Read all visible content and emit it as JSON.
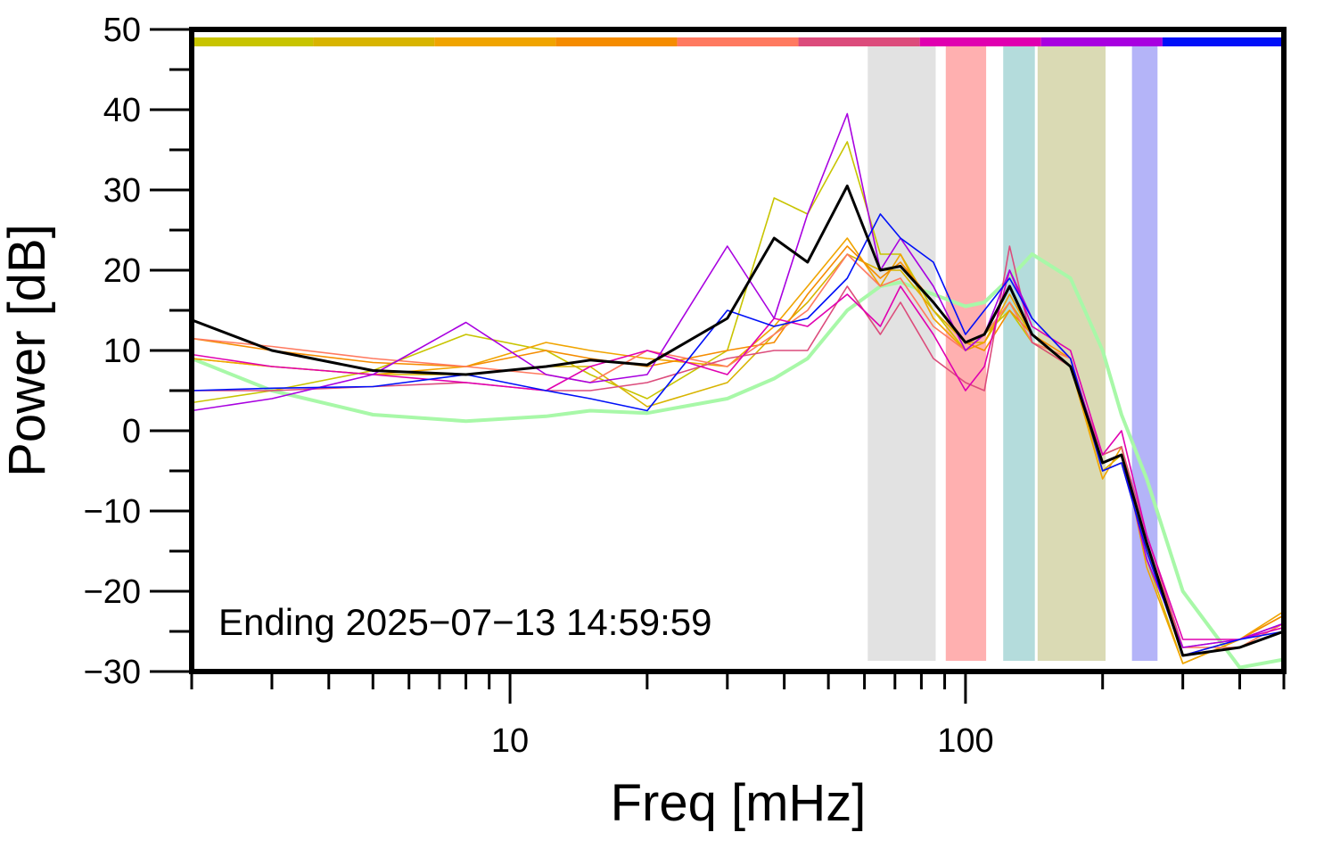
{
  "chart_data": {
    "type": "line",
    "xlabel": "Freq [mHz]",
    "ylabel": "Power [dB]",
    "annotation": "Ending 2025−07−13 14:59:59",
    "xscale": "log",
    "xlim": [
      2,
      500
    ],
    "ylim": [
      -30,
      50
    ],
    "xticks": [
      10,
      100
    ],
    "xminorticks": [
      2,
      3,
      4,
      5,
      6,
      7,
      8,
      9,
      20,
      30,
      40,
      50,
      60,
      70,
      80,
      90,
      200,
      300,
      400,
      500
    ],
    "yticks": [
      {
        "value": -30,
        "label": "−30"
      },
      {
        "value": -20,
        "label": "−20"
      },
      {
        "value": -10,
        "label": "−10"
      },
      0,
      10,
      20,
      30,
      40,
      50
    ],
    "yminorticks": [
      -25,
      -15,
      -5,
      5,
      15,
      25,
      35,
      45
    ],
    "color_bar": [
      "#c8c400",
      "#d8b400",
      "#f0a400",
      "#f58c00",
      "#ff7a60",
      "#dc4c7c",
      "#e000b0",
      "#a800e0",
      "#0010f8"
    ],
    "bands": [
      {
        "xmin": 61,
        "xmax": 86,
        "color": "#e2e2e2"
      },
      {
        "xmin": 90.5,
        "xmax": 111,
        "color": "#ffb0b0"
      },
      {
        "xmin": 121,
        "xmax": 142,
        "color": "#b4dcdc"
      },
      {
        "xmin": 144,
        "xmax": 203,
        "color": "#dadab4"
      },
      {
        "xmin": 232,
        "xmax": 264,
        "color": "#b4b4f8"
      }
    ],
    "x": [
      2,
      3,
      5,
      8,
      12,
      15,
      20,
      30,
      38,
      45,
      55,
      65,
      72,
      85,
      100,
      110,
      125,
      140,
      170,
      200,
      220,
      250,
      300,
      400,
      500
    ],
    "series": [
      {
        "color": "#a8f8a8",
        "width": 4,
        "values": [
          9,
          5,
          2,
          1.2,
          1.8,
          2.5,
          2.2,
          4,
          6.5,
          9,
          15,
          18,
          18.5,
          17,
          15.5,
          16,
          19,
          22,
          19,
          10,
          2,
          -6,
          -20,
          -29.5,
          -28.5
        ]
      },
      {
        "color": "#c8c400",
        "width": 1.6,
        "values": [
          3.5,
          5,
          7.5,
          12,
          10,
          7,
          4,
          10,
          29,
          27,
          36,
          22,
          22,
          15,
          10,
          12,
          15,
          11,
          8,
          -3,
          -2,
          -15,
          -28,
          -27,
          -24
        ]
      },
      {
        "color": "#d8b400",
        "width": 1.6,
        "values": [
          9,
          8,
          7,
          7,
          8,
          8,
          3,
          6,
          12,
          16,
          22,
          20,
          20,
          15,
          11,
          11,
          16,
          12,
          8,
          -5,
          -3,
          -16,
          -29,
          -26,
          -23
        ]
      },
      {
        "color": "#f0a400",
        "width": 1.6,
        "values": [
          9,
          8,
          7,
          8,
          11,
          10,
          9,
          8,
          13,
          18,
          24,
          18,
          22,
          14,
          10,
          11,
          17,
          12,
          8,
          -6,
          -2,
          -17,
          -29,
          -26,
          -22.5
        ]
      },
      {
        "color": "#f58c00",
        "width": 1.6,
        "values": [
          11.5,
          10,
          8.5,
          8,
          10,
          9,
          8,
          10,
          11,
          17,
          23,
          19,
          21,
          16,
          11,
          10,
          15,
          12,
          9,
          -5,
          -4,
          -15,
          -28,
          -26,
          -23
        ]
      },
      {
        "color": "#ff7a60",
        "width": 1.6,
        "values": [
          11.5,
          10.5,
          9,
          8,
          7,
          6,
          10,
          8,
          12,
          15,
          22,
          18,
          19,
          13,
          10,
          12,
          16,
          11,
          9,
          -4,
          -3,
          -14,
          -27,
          -27,
          -24
        ]
      },
      {
        "color": "#dc4c7c",
        "width": 1.6,
        "values": [
          5,
          5,
          5.5,
          6,
          5,
          5,
          6,
          9,
          10,
          10,
          18,
          12,
          16,
          9,
          6,
          5,
          23,
          11,
          8,
          -3,
          -2,
          -13,
          -27,
          -26,
          -24
        ]
      },
      {
        "color": "#e000b0",
        "width": 1.6,
        "values": [
          9.5,
          8,
          7,
          6,
          5,
          8,
          10,
          7,
          14,
          13,
          17,
          13,
          18,
          12,
          5,
          8,
          20,
          13,
          10,
          -3,
          0,
          -13,
          -26,
          -26,
          -24.5
        ]
      },
      {
        "color": "#a800e0",
        "width": 1.6,
        "values": [
          2.5,
          4,
          7,
          13.5,
          7,
          6,
          7,
          23,
          14,
          27,
          39.5,
          20,
          24,
          18,
          10,
          12,
          20,
          14,
          9,
          -4,
          -3,
          -16,
          -27,
          -26,
          -24
        ]
      },
      {
        "color": "#0010f8",
        "width": 1.6,
        "values": [
          5,
          5.3,
          5.5,
          7,
          5,
          4,
          2.5,
          15,
          13,
          14,
          19,
          27,
          24,
          21,
          12,
          15,
          19,
          14,
          9,
          -5,
          -4,
          -15,
          -28,
          -26,
          -25
        ]
      },
      {
        "color": "#000000",
        "width": 3,
        "values": [
          13.8,
          10,
          7.5,
          7,
          8,
          8.8,
          8.2,
          14,
          24,
          21,
          30.5,
          20,
          20.5,
          16,
          11,
          12,
          18,
          12,
          8,
          -4,
          -3,
          -14,
          -28,
          -27,
          -25
        ]
      }
    ]
  }
}
